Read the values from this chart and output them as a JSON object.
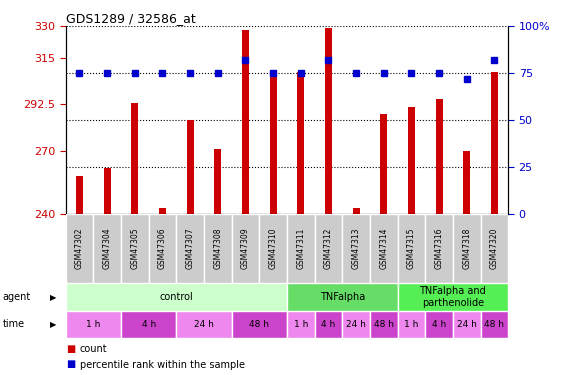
{
  "title": "GDS1289 / 32586_at",
  "samples": [
    "GSM47302",
    "GSM47304",
    "GSM47305",
    "GSM47306",
    "GSM47307",
    "GSM47308",
    "GSM47309",
    "GSM47310",
    "GSM47311",
    "GSM47312",
    "GSM47313",
    "GSM47314",
    "GSM47315",
    "GSM47316",
    "GSM47318",
    "GSM47320"
  ],
  "counts": [
    258,
    262,
    293,
    243,
    285,
    271,
    328,
    308,
    308,
    329,
    243,
    288,
    291,
    295,
    270,
    308
  ],
  "percentiles": [
    75,
    75,
    75,
    75,
    75,
    75,
    82,
    75,
    75,
    82,
    75,
    75,
    75,
    75,
    72,
    82
  ],
  "bar_color": "#cc0000",
  "dot_color": "#0000cc",
  "ylim_left": [
    240,
    330
  ],
  "yticks_left": [
    240,
    270,
    292.5,
    315,
    330
  ],
  "ytick_labels_left": [
    "240",
    "270",
    "292.5",
    "315",
    "330"
  ],
  "ylim_right": [
    0,
    100
  ],
  "yticks_right": [
    0,
    25,
    50,
    75,
    100
  ],
  "ytick_labels_right": [
    "0",
    "25",
    "50",
    "75",
    "100%"
  ],
  "agent_groups": [
    {
      "label": "control",
      "start": 0,
      "end": 7,
      "color": "#ccffcc"
    },
    {
      "label": "TNFalpha",
      "start": 8,
      "end": 11,
      "color": "#66dd66"
    },
    {
      "label": "TNFalpha and\nparthenolide",
      "start": 12,
      "end": 15,
      "color": "#55ee55"
    }
  ],
  "time_groups": [
    {
      "label": "1 h",
      "start": 0,
      "end": 1,
      "color": "#ee88ee"
    },
    {
      "label": "4 h",
      "start": 2,
      "end": 3,
      "color": "#cc44cc"
    },
    {
      "label": "24 h",
      "start": 4,
      "end": 5,
      "color": "#ee88ee"
    },
    {
      "label": "48 h",
      "start": 6,
      "end": 7,
      "color": "#cc44cc"
    },
    {
      "label": "1 h",
      "start": 8,
      "end": 8,
      "color": "#ee88ee"
    },
    {
      "label": "4 h",
      "start": 9,
      "end": 9,
      "color": "#cc44cc"
    },
    {
      "label": "24 h",
      "start": 10,
      "end": 10,
      "color": "#ee88ee"
    },
    {
      "label": "48 h",
      "start": 11,
      "end": 11,
      "color": "#cc44cc"
    },
    {
      "label": "1 h",
      "start": 12,
      "end": 12,
      "color": "#ee88ee"
    },
    {
      "label": "4 h",
      "start": 13,
      "end": 13,
      "color": "#cc44cc"
    },
    {
      "label": "24 h",
      "start": 14,
      "end": 14,
      "color": "#ee88ee"
    },
    {
      "label": "48 h",
      "start": 15,
      "end": 15,
      "color": "#cc44cc"
    }
  ],
  "bar_width": 0.25,
  "dot_size": 4,
  "grid_dotted_color": "#000000",
  "sample_box_color": "#cccccc",
  "bg_color": "#ffffff"
}
